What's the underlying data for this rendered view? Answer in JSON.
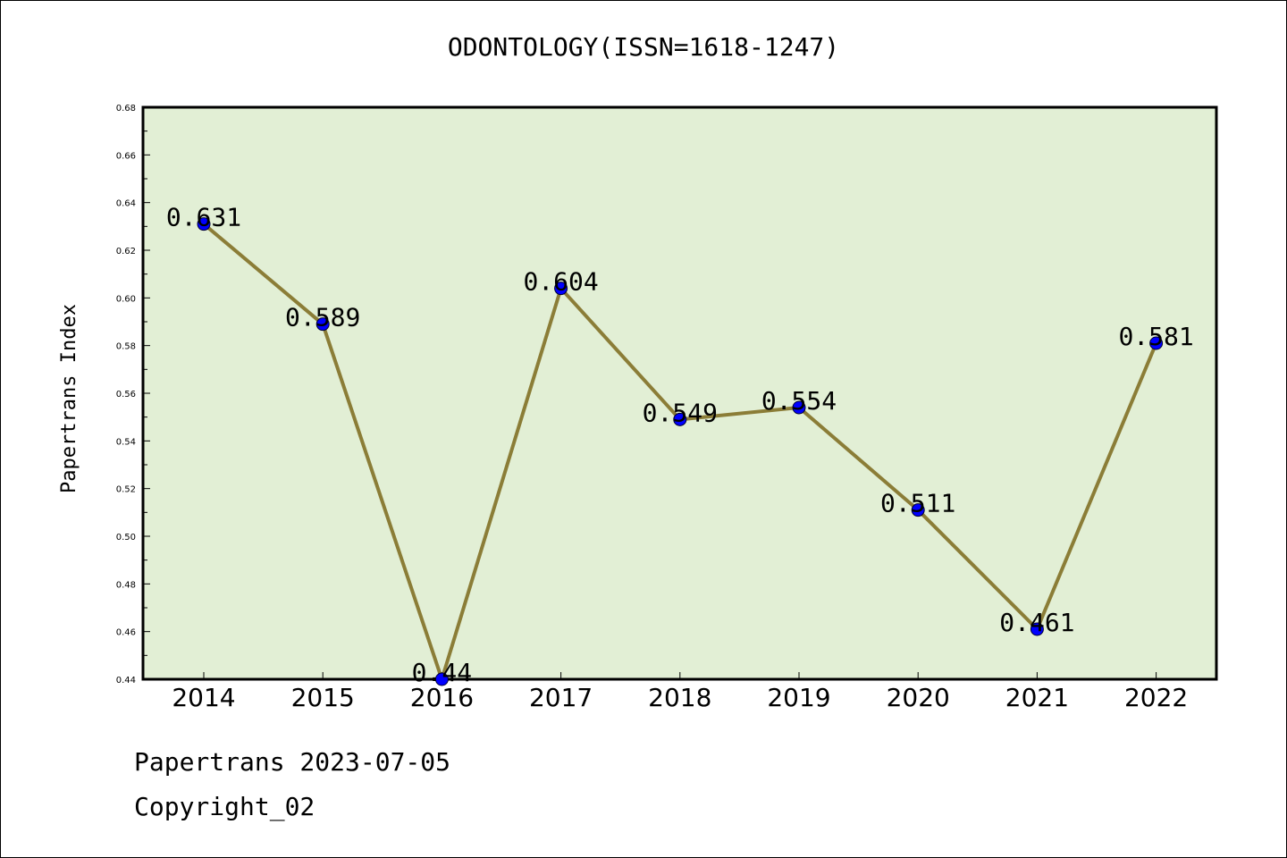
{
  "page": {
    "title": "ODONTOLOGY(ISSN=1618-1247)",
    "footer_line1": "Papertrans 2023-07-05",
    "footer_line2": "Copyright_02"
  },
  "colors": {
    "plot_background": "#e2efd5",
    "line": "#8b7d37",
    "marker": "#0000ff"
  },
  "chart_data": {
    "type": "line",
    "title": "ODONTOLOGY(ISSN=1618-1247)",
    "xlabel": "",
    "ylabel": "Papertrans Index",
    "categories": [
      "2014",
      "2015",
      "2016",
      "2017",
      "2018",
      "2019",
      "2020",
      "2021",
      "2022"
    ],
    "values": [
      0.631,
      0.589,
      0.44,
      0.604,
      0.549,
      0.554,
      0.511,
      0.461,
      0.581
    ],
    "data_labels": [
      "0.631",
      "0.589",
      "0.44",
      "0.604",
      "0.549",
      "0.554",
      "0.511",
      "0.461",
      "0.581"
    ],
    "ylim": [
      0.44,
      0.68
    ],
    "yticks": [
      "0.44",
      "0.46",
      "0.48",
      "0.50",
      "0.52",
      "0.54",
      "0.56",
      "0.58",
      "0.60",
      "0.62",
      "0.64",
      "0.66",
      "0.68"
    ],
    "grid": false,
    "legend": "none"
  }
}
